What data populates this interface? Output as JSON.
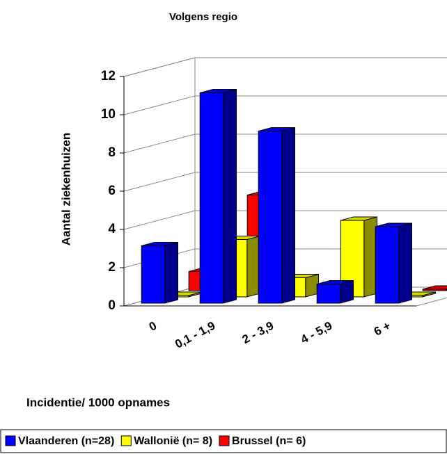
{
  "chart_data": {
    "type": "bar3d",
    "title": "Volgens regio",
    "y_label": "Aantal ziekenhuizen",
    "x_label": "Incidentie/ 1000 opnames",
    "categories": [
      "0",
      "0,1 - 1,9",
      "2 - 3,9",
      "4 - 5,9",
      "6 +"
    ],
    "series": [
      {
        "name": "Vlaanderen (n=28)",
        "color": "#0000ff",
        "values": [
          3,
          11,
          9,
          1,
          4
        ]
      },
      {
        "name": "Wallonië (n= 8)",
        "color": "#ffff00",
        "values": [
          0,
          3,
          1,
          4,
          0
        ]
      },
      {
        "name": "Brussel (n= 6)",
        "color": "#ff0000",
        "values": [
          1,
          5,
          0,
          0,
          0
        ]
      }
    ],
    "ylim": [
      0,
      12
    ],
    "yticks": [
      0,
      2,
      4,
      6,
      8,
      10,
      12
    ],
    "grid": true,
    "legend": "bottom"
  }
}
